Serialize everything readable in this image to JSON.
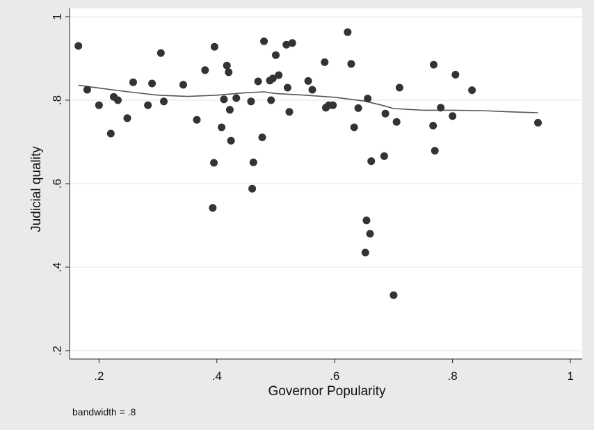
{
  "chart_data": {
    "type": "scatter",
    "xlabel": "Governor Popularity",
    "ylabel": "Judicial quality",
    "xlim": [
      0.15,
      1.02
    ],
    "ylim": [
      0.18,
      1.02
    ],
    "x_ticks": [
      ".2",
      ".4",
      ".6",
      ".8",
      "1"
    ],
    "x_tick_values": [
      0.2,
      0.4,
      0.6,
      0.8,
      1.0
    ],
    "y_ticks": [
      ".2",
      ".4",
      ".6",
      ".8",
      "1"
    ],
    "y_tick_values": [
      0.2,
      0.4,
      0.6,
      0.8,
      1.0
    ],
    "grid": "horizontal",
    "note": "bandwidth = .8",
    "colors": {
      "outer_background": "#eaeaea",
      "plot_background": "#ffffff",
      "points": "#333333",
      "line": "#555555",
      "grid": "#e6e6e6"
    },
    "points": [
      [
        0.165,
        0.93
      ],
      [
        0.18,
        0.825
      ],
      [
        0.2,
        0.788
      ],
      [
        0.22,
        0.72
      ],
      [
        0.225,
        0.808
      ],
      [
        0.232,
        0.8
      ],
      [
        0.248,
        0.757
      ],
      [
        0.258,
        0.843
      ],
      [
        0.283,
        0.788
      ],
      [
        0.29,
        0.84
      ],
      [
        0.305,
        0.913
      ],
      [
        0.31,
        0.797
      ],
      [
        0.343,
        0.837
      ],
      [
        0.366,
        0.753
      ],
      [
        0.38,
        0.872
      ],
      [
        0.393,
        0.542
      ],
      [
        0.395,
        0.65
      ],
      [
        0.396,
        0.928
      ],
      [
        0.408,
        0.735
      ],
      [
        0.412,
        0.802
      ],
      [
        0.417,
        0.883
      ],
      [
        0.42,
        0.867
      ],
      [
        0.422,
        0.777
      ],
      [
        0.424,
        0.703
      ],
      [
        0.433,
        0.805
      ],
      [
        0.458,
        0.797
      ],
      [
        0.46,
        0.588
      ],
      [
        0.462,
        0.651
      ],
      [
        0.47,
        0.845
      ],
      [
        0.477,
        0.711
      ],
      [
        0.48,
        0.941
      ],
      [
        0.49,
        0.847
      ],
      [
        0.492,
        0.8
      ],
      [
        0.495,
        0.852
      ],
      [
        0.5,
        0.908
      ],
      [
        0.505,
        0.86
      ],
      [
        0.518,
        0.933
      ],
      [
        0.52,
        0.83
      ],
      [
        0.523,
        0.772
      ],
      [
        0.528,
        0.937
      ],
      [
        0.555,
        0.846
      ],
      [
        0.562,
        0.825
      ],
      [
        0.583,
        0.891
      ],
      [
        0.585,
        0.782
      ],
      [
        0.59,
        0.788
      ],
      [
        0.597,
        0.788
      ],
      [
        0.622,
        0.963
      ],
      [
        0.628,
        0.887
      ],
      [
        0.633,
        0.735
      ],
      [
        0.64,
        0.781
      ],
      [
        0.652,
        0.435
      ],
      [
        0.654,
        0.512
      ],
      [
        0.656,
        0.804
      ],
      [
        0.66,
        0.48
      ],
      [
        0.662,
        0.654
      ],
      [
        0.684,
        0.666
      ],
      [
        0.686,
        0.768
      ],
      [
        0.7,
        0.333
      ],
      [
        0.705,
        0.748
      ],
      [
        0.71,
        0.83
      ],
      [
        0.767,
        0.739
      ],
      [
        0.768,
        0.885
      ],
      [
        0.77,
        0.679
      ],
      [
        0.78,
        0.782
      ],
      [
        0.8,
        0.762
      ],
      [
        0.805,
        0.861
      ],
      [
        0.833,
        0.824
      ],
      [
        0.945,
        0.746
      ]
    ],
    "lowess": [
      [
        0.165,
        0.836
      ],
      [
        0.2,
        0.829
      ],
      [
        0.25,
        0.82
      ],
      [
        0.3,
        0.812
      ],
      [
        0.35,
        0.809
      ],
      [
        0.4,
        0.812
      ],
      [
        0.45,
        0.818
      ],
      [
        0.48,
        0.82
      ],
      [
        0.5,
        0.816
      ],
      [
        0.55,
        0.812
      ],
      [
        0.6,
        0.807
      ],
      [
        0.65,
        0.798
      ],
      [
        0.68,
        0.788
      ],
      [
        0.7,
        0.78
      ],
      [
        0.75,
        0.776
      ],
      [
        0.8,
        0.776
      ],
      [
        0.85,
        0.775
      ],
      [
        0.9,
        0.772
      ],
      [
        0.945,
        0.77
      ]
    ]
  }
}
